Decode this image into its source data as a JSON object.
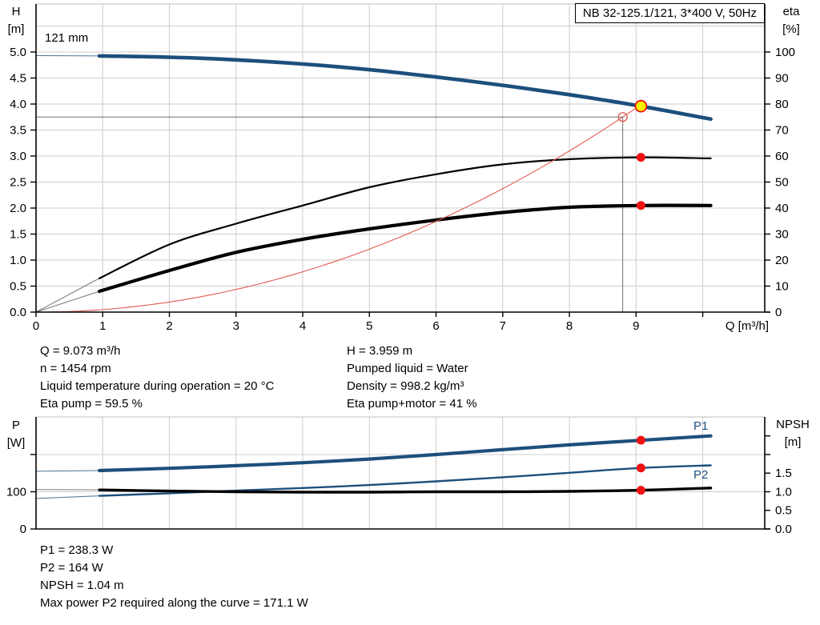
{
  "palette": {
    "curve_blue": "#1d4f7c",
    "curve_black": "#000000",
    "system_curve_red": "#e05a50",
    "marker_red": "#ee1111",
    "marker_yellow": "#fff200",
    "grid_gray": "#cccccc",
    "crosshair_gray": "#707070"
  },
  "title_box": {
    "label": "NB 32-125.1/121, 3*400 V, 50Hz"
  },
  "labels": {
    "impeller": "121 mm",
    "h_axis": "H",
    "h_unit": "[m]",
    "eta_axis": "eta",
    "eta_unit": "[%]",
    "q_axis": "Q [m³/h]",
    "p_axis": "P",
    "p_unit": "[W]",
    "npsh_axis": "NPSH",
    "npsh_unit": "[m]",
    "p1": "P1",
    "p2": "P2"
  },
  "operating_point_text": {
    "left": [
      "Q = 9.073 m³/h",
      "n = 1454 rpm",
      "Liquid temperature during operation = 20 °C",
      "Eta pump = 59.5 %"
    ],
    "right": [
      "H = 3.959 m",
      "Pumped liquid = Water",
      "Density = 998.2 kg/m³",
      "Eta pump+motor = 41 %"
    ]
  },
  "power_text": [
    "P1 = 238.3 W",
    "P2 = 164 W",
    "NPSH = 1.04 m",
    "Max power P2 required along the curve = 171.1 W"
  ],
  "chart_data": [
    {
      "type": "line",
      "title": "NB 32-125.1/121, 3*400 V, 50Hz",
      "impeller": "121 mm",
      "x_axis": {
        "label": "Q [m³/h]",
        "min": 0,
        "max": 10.93,
        "ticks": [
          0,
          1,
          2,
          3,
          4,
          5,
          6,
          7,
          8,
          9,
          10
        ],
        "tick_labels": [
          "0",
          "1",
          "2",
          "3",
          "4",
          "5",
          "6",
          "7",
          "8",
          "9",
          ""
        ]
      },
      "y_left": {
        "label": "H [m]",
        "min": 0,
        "max": 5.92,
        "ticks": [
          0,
          0.5,
          1,
          1.5,
          2,
          2.5,
          3,
          3.5,
          4,
          4.5,
          5
        ],
        "tick_labels": [
          "0.0",
          "0.5",
          "1.0",
          "1.5",
          "2.0",
          "2.5",
          "3.0",
          "3.5",
          "4.0",
          "4.5",
          "5.0"
        ],
        "grid_step": 0.5,
        "grid_max": 5.5
      },
      "y_right": {
        "label": "eta [%]",
        "min": 0,
        "max": 118.4,
        "ticks": [
          0,
          10,
          20,
          30,
          40,
          50,
          60,
          70,
          80,
          90,
          100
        ],
        "tick_labels": [
          "0",
          "10",
          "20",
          "30",
          "40",
          "50",
          "60",
          "70",
          "80",
          "90",
          "100"
        ]
      },
      "series": [
        {
          "name": "head-curve-121mm",
          "axis": "left",
          "tail": [
            [
              0,
              4.93
            ],
            [
              0.95,
              4.925
            ]
          ],
          "points": [
            [
              0.95,
              4.925
            ],
            [
              2,
              4.9
            ],
            [
              3,
              4.85
            ],
            [
              4,
              4.77
            ],
            [
              5,
              4.66
            ],
            [
              6,
              4.52
            ],
            [
              7,
              4.36
            ],
            [
              8,
              4.18
            ],
            [
              9.073,
              3.959
            ],
            [
              10.12,
              3.71
            ]
          ]
        },
        {
          "name": "eta-pump",
          "axis": "right",
          "tail": [
            [
              0,
              0
            ],
            [
              0.95,
              13
            ]
          ],
          "points": [
            [
              0.95,
              13
            ],
            [
              2,
              26
            ],
            [
              3,
              34
            ],
            [
              4,
              41
            ],
            [
              5,
              48
            ],
            [
              6,
              53
            ],
            [
              7,
              56.8
            ],
            [
              8,
              58.8
            ],
            [
              9.073,
              59.5
            ],
            [
              10.12,
              59.1
            ]
          ]
        },
        {
          "name": "eta-pump-motor",
          "axis": "right",
          "tail": [
            [
              0,
              0
            ],
            [
              0.95,
              8
            ]
          ],
          "points": [
            [
              0.95,
              8
            ],
            [
              2,
              16
            ],
            [
              3,
              23
            ],
            [
              4,
              28
            ],
            [
              5,
              32
            ],
            [
              6,
              35.4
            ],
            [
              7,
              38.3
            ],
            [
              8,
              40.3
            ],
            [
              9.073,
              41
            ],
            [
              10.12,
              41
            ]
          ]
        },
        {
          "name": "system-curve",
          "axis": "left",
          "parabola_k": 0.04842,
          "q_end": 9.073
        }
      ],
      "markers": [
        {
          "kind": "open-circle",
          "axis": "left",
          "q": 8.8,
          "v": 3.75
        },
        {
          "kind": "dot",
          "axis": "right",
          "q": 9.073,
          "v": 59.5
        },
        {
          "kind": "dot",
          "axis": "right",
          "q": 9.073,
          "v": 41
        },
        {
          "kind": "duty-point",
          "axis": "left",
          "q": 9.073,
          "v": 3.959
        }
      ],
      "crosshair": {
        "q": 8.8,
        "h": 3.75
      }
    },
    {
      "type": "line",
      "x_axis": {
        "min": 0,
        "max": 10.93,
        "ticks": [
          1,
          2,
          3,
          4,
          5,
          6,
          7,
          8,
          9,
          10
        ],
        "tick_labels": []
      },
      "y_left": {
        "label": "P [W]",
        "min": 0,
        "max": 301,
        "ticks": [
          0,
          100,
          200
        ],
        "tick_labels": [
          "0",
          "100",
          ""
        ]
      },
      "y_right": {
        "label": "NPSH [m]",
        "min": 0,
        "max": 3.01,
        "ticks": [
          0,
          0.5,
          1,
          1.5,
          2,
          2.5
        ],
        "tick_labels": [
          "0.0",
          "0.5",
          "1.0",
          "1.5",
          "",
          ""
        ],
        "gridlines": [
          1,
          2
        ]
      },
      "series": [
        {
          "name": "p2-curve",
          "axis": "left",
          "tail": [
            [
              0,
              82
            ],
            [
              0.95,
              89
            ]
          ],
          "points": [
            [
              0.95,
              89
            ],
            [
              2,
              96
            ],
            [
              3,
              103
            ],
            [
              4,
              110
            ],
            [
              5,
              118
            ],
            [
              6,
              128
            ],
            [
              7,
              139
            ],
            [
              8,
              151
            ],
            [
              9.073,
              164
            ],
            [
              10.12,
              171
            ]
          ]
        },
        {
          "name": "npsh-curve",
          "axis": "right",
          "tail": [
            [
              0,
              1.06
            ],
            [
              0.95,
              1.05
            ]
          ],
          "points": [
            [
              0.95,
              1.05
            ],
            [
              2,
              1.02
            ],
            [
              3,
              1.0
            ],
            [
              4,
              0.99
            ],
            [
              5,
              0.99
            ],
            [
              6,
              1.0
            ],
            [
              7,
              1.0
            ],
            [
              8,
              1.01
            ],
            [
              9.073,
              1.04
            ],
            [
              10.12,
              1.1
            ]
          ]
        },
        {
          "name": "p1-curve",
          "axis": "left",
          "tail": [
            [
              0,
              155
            ],
            [
              0.95,
              157
            ]
          ],
          "points": [
            [
              0.95,
              157
            ],
            [
              2,
              163
            ],
            [
              3,
              170
            ],
            [
              4,
              178
            ],
            [
              5,
              188
            ],
            [
              6,
              200
            ],
            [
              7,
              213
            ],
            [
              8,
              226
            ],
            [
              9.073,
              238.3
            ],
            [
              10.12,
              250
            ]
          ]
        }
      ],
      "markers": [
        {
          "kind": "dot",
          "axis": "left",
          "q": 9.073,
          "v": 238.3
        },
        {
          "kind": "dot",
          "axis": "left",
          "q": 9.073,
          "v": 164
        },
        {
          "kind": "dot",
          "axis": "right",
          "q": 9.073,
          "v": 1.04
        }
      ]
    }
  ]
}
